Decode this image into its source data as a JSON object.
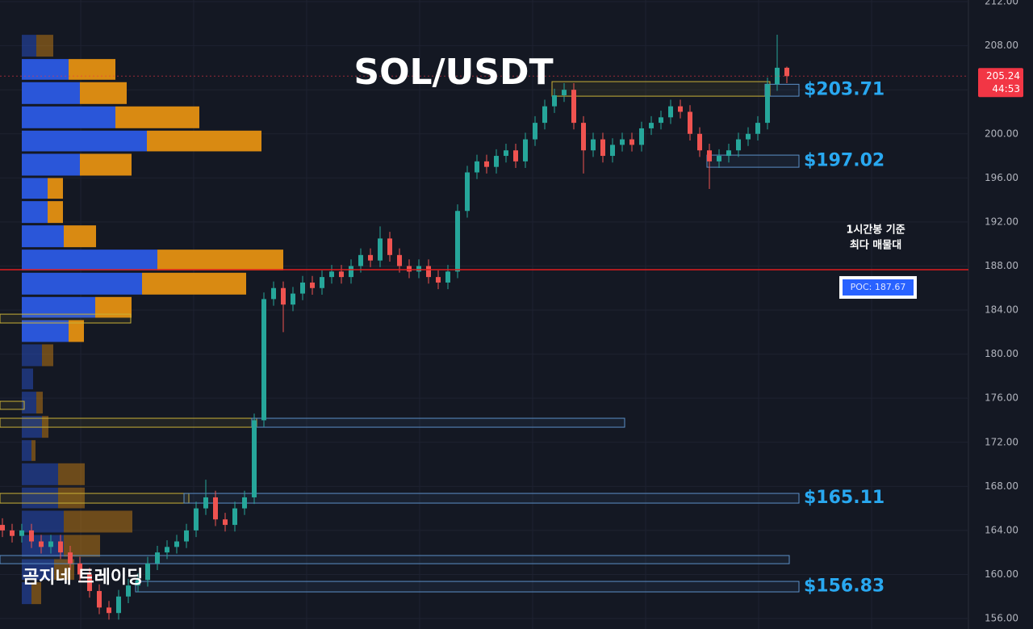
{
  "chart_data": {
    "type": "candlestick",
    "title": "SOL/USDT",
    "watermark": "곰지네 트레이딩",
    "annotation": [
      "1시간봉 기준",
      "최다 매물대"
    ],
    "ylim": [
      155.05,
      212.15
    ],
    "yticks": [
      {
        "value": 156,
        "label": "156.00"
      },
      {
        "value": 160,
        "label": "160.00"
      },
      {
        "value": 164,
        "label": "164.00"
      },
      {
        "value": 168,
        "label": "168.00"
      },
      {
        "value": 172,
        "label": "172.00"
      },
      {
        "value": 176,
        "label": "176.00"
      },
      {
        "value": 180,
        "label": "180.00"
      },
      {
        "value": 184,
        "label": "184.00"
      },
      {
        "value": 188,
        "label": "188.00"
      },
      {
        "value": 192,
        "label": "192.00"
      },
      {
        "value": 196,
        "label": "196.00"
      },
      {
        "value": 200,
        "label": "200.00"
      },
      {
        "value": 204,
        "label": "204.00"
      },
      {
        "value": 208,
        "label": "208.00"
      },
      {
        "value": 212,
        "label": "212.00"
      }
    ],
    "grid": true,
    "up_color": "#26a69a",
    "down_color": "#ef5350",
    "open": [
      164.5,
      164,
      163.5,
      164,
      163,
      162.5,
      163,
      162,
      161,
      160,
      158.5,
      157,
      156.5,
      158,
      159,
      159.5,
      161,
      162,
      162.5,
      163,
      164,
      166,
      167,
      165,
      164.5,
      166,
      167,
      174,
      185,
      186,
      184.5,
      185.5,
      186.5,
      186,
      187,
      187.5,
      187,
      188,
      189,
      188.5,
      190.5,
      189,
      188,
      187.5,
      188,
      187,
      186.5,
      187.5,
      193,
      196.5,
      197.5,
      197,
      198,
      198.5,
      197.5,
      199.5,
      201,
      202.5,
      203.5,
      204,
      201,
      198.5,
      199.5,
      198,
      199,
      199.5,
      199,
      200.5,
      201,
      201.5,
      202.5,
      202,
      200,
      198.5,
      197.5,
      198,
      198.5,
      199.5,
      200,
      201,
      204.5,
      206
    ],
    "high": [
      165.1,
      164.6,
      164.6,
      164.6,
      163.6,
      163.6,
      163.6,
      162.6,
      161.6,
      160.6,
      159.1,
      157.6,
      158.6,
      159.6,
      160.1,
      161.6,
      162.6,
      163.1,
      163.6,
      164.6,
      166.6,
      168.6,
      167.6,
      165.6,
      166.6,
      167.6,
      174.6,
      185.6,
      186.6,
      186.6,
      186.1,
      187.1,
      187.1,
      187.6,
      188.1,
      188.1,
      188.6,
      189.6,
      189.6,
      191.6,
      191.1,
      189.6,
      188.6,
      188.6,
      188.6,
      187.6,
      188.1,
      193.6,
      197.1,
      198.1,
      198.1,
      198.6,
      199.1,
      199.1,
      200.1,
      201.6,
      203.1,
      204.1,
      204.6,
      204.6,
      201.6,
      200.1,
      200.1,
      199.6,
      200.1,
      200.1,
      201.1,
      201.6,
      202.1,
      203.1,
      203.1,
      202.6,
      200.6,
      199.1,
      198.6,
      199.1,
      200.1,
      200.6,
      201.6,
      205.1,
      209,
      206.1
    ],
    "low": [
      163.4,
      162.9,
      162.9,
      162.4,
      161.9,
      161.9,
      161.4,
      160.4,
      159.4,
      157.9,
      156.4,
      155.9,
      155.9,
      157.4,
      158.4,
      158.9,
      160.4,
      161.4,
      161.9,
      162.4,
      163.4,
      165.4,
      164.4,
      163.9,
      163.9,
      165.4,
      166.4,
      173.4,
      184.4,
      182,
      183.9,
      184.9,
      185.4,
      185.4,
      186.4,
      186.4,
      186.4,
      187.4,
      187.9,
      187.9,
      188.4,
      187.4,
      186.9,
      186.9,
      186.4,
      185.9,
      185.9,
      186.9,
      192.4,
      195.9,
      196.4,
      196.4,
      197.4,
      196.9,
      196.9,
      198.9,
      200.4,
      201.9,
      202.9,
      200.4,
      196.4,
      197.9,
      197.4,
      197.4,
      198.4,
      198.4,
      198.4,
      199.9,
      200.4,
      200.9,
      201.4,
      199.4,
      197.9,
      195,
      196.9,
      197.4,
      197.9,
      198.9,
      199.4,
      200.4,
      203.9,
      204.6
    ],
    "close": [
      164,
      163.5,
      164,
      163,
      162.5,
      163,
      162,
      161,
      160,
      158.5,
      157,
      156.5,
      158,
      159,
      159.5,
      161,
      162,
      162.5,
      163,
      164,
      166,
      167,
      165,
      164.5,
      166,
      167,
      174,
      185,
      186,
      184.5,
      185.5,
      186.5,
      186,
      187,
      187.5,
      187,
      188,
      189,
      188.5,
      190.5,
      189,
      188,
      187.5,
      188,
      187,
      186.5,
      187.5,
      193,
      196.5,
      197.5,
      197,
      198,
      198.5,
      197.5,
      199.5,
      201,
      202.5,
      203.5,
      204,
      201,
      198.5,
      199.5,
      198,
      199,
      199.5,
      199,
      200.5,
      201,
      201.5,
      202.5,
      202,
      200,
      198.5,
      197.5,
      198,
      198.5,
      199.5,
      200,
      201,
      204.5,
      206,
      205.24
    ],
    "last_price": 205.24,
    "countdown": "44:53",
    "poc": {
      "value": 187.67,
      "label": "POC: 187.67"
    },
    "profile": {
      "edges": [
        209.1,
        206.9,
        204.8,
        202.6,
        200.4,
        198.3,
        196.1,
        194.0,
        191.8,
        189.6,
        187.5,
        185.3,
        183.2,
        181.0,
        178.8,
        176.7,
        174.5,
        172.3,
        170.2,
        168.0,
        165.9,
        163.7,
        161.5,
        159.4,
        157.2
      ],
      "buy": [
        18,
        58,
        72,
        116,
        155,
        72,
        32,
        32,
        52,
        168,
        149,
        91,
        58,
        25,
        14,
        18,
        25,
        12,
        45,
        45,
        52,
        52,
        40,
        12
      ],
      "sell": [
        21,
        58,
        58,
        104,
        142,
        64,
        19,
        19,
        40,
        156,
        129,
        45,
        19,
        14,
        0,
        8,
        8,
        5,
        33,
        33,
        85,
        45,
        25,
        12
      ],
      "buy_color": "#2a56d9",
      "sell_color": "#d98a12",
      "value_area": [
        181.0,
        206.9
      ]
    },
    "zones": [
      {
        "low": 203.42,
        "high": 204.74,
        "start": 57,
        "end": 79,
        "color": "#c9b037"
      },
      {
        "low": 203.42,
        "high": 204.5,
        "start": 79,
        "end": 82,
        "color": "#5b8fc7",
        "label": "$203.71"
      },
      {
        "low": 196.97,
        "high": 198.07,
        "start": 73,
        "end": 82,
        "color": "#5b8fc7",
        "label": "$197.02"
      },
      {
        "low": 173.37,
        "high": 174.18,
        "start": 0,
        "end": 26,
        "color": "#c9b037"
      },
      {
        "low": 173.37,
        "high": 174.18,
        "start": 26,
        "end": 64,
        "color": "#5b8fc7"
      },
      {
        "low": 166.48,
        "high": 167.36,
        "start": 0,
        "end": 19,
        "color": "#c9b037"
      },
      {
        "low": 166.48,
        "high": 167.36,
        "start": 19,
        "end": 82,
        "color": "#5b8fc7",
        "label": "$165.11"
      },
      {
        "low": 160.98,
        "high": 161.72,
        "start": 0,
        "end": 81,
        "color": "#5b8fc7"
      },
      {
        "low": 158.42,
        "high": 159.37,
        "start": 14,
        "end": 82,
        "color": "#5b8fc7",
        "label": "$156.83"
      },
      {
        "low": 182.83,
        "high": 183.63,
        "start": 0,
        "end": 13,
        "color": "#c9b037"
      },
      {
        "low": 174.99,
        "high": 175.72,
        "start": 0,
        "end": 2,
        "color": "#c9b037"
      }
    ]
  }
}
